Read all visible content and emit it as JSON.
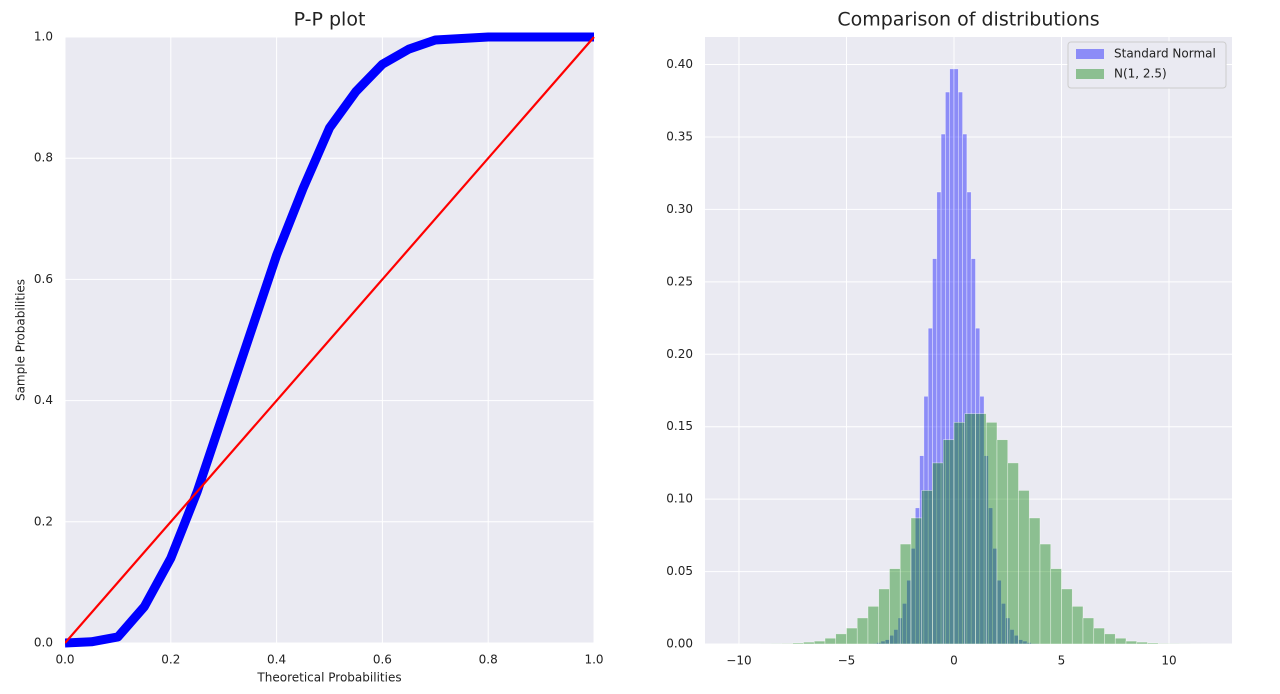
{
  "chart_data": [
    {
      "type": "line",
      "title": "P-P plot",
      "xlabel": "Theoretical Probabilities",
      "ylabel": "Sample Probabilities",
      "xlim": [
        0,
        1
      ],
      "ylim": [
        0,
        1
      ],
      "xticks": [
        {
          "value": 0,
          "label": "0.0"
        },
        0.2,
        0.4,
        0.6,
        0.8,
        {
          "value": 1,
          "label": "1.0"
        }
      ],
      "yticks": [
        {
          "value": 0,
          "label": "0.0"
        },
        0.2,
        0.4,
        0.6,
        0.8,
        {
          "value": 1,
          "label": "1.0"
        }
      ],
      "grid": true,
      "series": [
        {
          "color": "#0000ff",
          "x": [
            0,
            0.05,
            0.1,
            0.15,
            0.2,
            0.25,
            0.3,
            0.35,
            0.4,
            0.45,
            0.5,
            0.55,
            0.6,
            0.65,
            0.7,
            0.8,
            0.9,
            1.0
          ],
          "values": [
            0,
            0.002,
            0.01,
            0.06,
            0.14,
            0.25,
            0.38,
            0.51,
            0.64,
            0.75,
            0.85,
            0.91,
            0.955,
            0.98,
            0.995,
            1.0,
            1.0,
            1.0
          ]
        },
        {
          "color": "#ff0000",
          "x": [
            0,
            1
          ],
          "values": [
            0,
            1
          ]
        }
      ]
    },
    {
      "type": "histogram",
      "title": "Comparison of distributions",
      "xlim": [
        -11.58,
        12.93
      ],
      "ylim": [
        0,
        0.419
      ],
      "xticks": [
        {
          "value": -10,
          "label": "−10"
        },
        {
          "value": -5,
          "label": "−5"
        },
        0,
        5,
        10
      ],
      "yticks": [
        {
          "value": 0,
          "label": "0.00"
        },
        0.05,
        {
          "value": 0.1,
          "label": "0.10"
        },
        0.15,
        {
          "value": 0.2,
          "label": "0.20"
        },
        0.25,
        {
          "value": 0.3,
          "label": "0.30"
        },
        0.35,
        {
          "value": 0.4,
          "label": "0.40"
        }
      ],
      "grid": true,
      "legend": "upper right",
      "series": [
        {
          "name": "Standard Normal",
          "color": "#0000ff",
          "bins": [
            -4,
            -3.8,
            -3.6,
            -3.4,
            -3.2,
            -3,
            -2.8,
            -2.6,
            -2.4,
            -2.2,
            -2,
            -1.8,
            -1.6,
            -1.4,
            -1.2,
            -1,
            -0.8,
            -0.6,
            -0.4,
            -0.2,
            0,
            0.2,
            0.4,
            0.6,
            0.8,
            1,
            1.2,
            1.4,
            1.6,
            1.8,
            2,
            2.2,
            2.4,
            2.6,
            2.8,
            3,
            3.2,
            3.4,
            3.6,
            3.8,
            4
          ],
          "values": [
            0.0002,
            0.0004,
            0.001,
            0.002,
            0.003,
            0.006,
            0.01,
            0.018,
            0.028,
            0.044,
            0.066,
            0.094,
            0.13,
            0.171,
            0.218,
            0.266,
            0.312,
            0.352,
            0.381,
            0.397,
            0.397,
            0.381,
            0.352,
            0.312,
            0.266,
            0.218,
            0.171,
            0.13,
            0.094,
            0.066,
            0.044,
            0.028,
            0.018,
            0.01,
            0.006,
            0.003,
            0.002,
            0.001,
            0.0004,
            0.0002
          ]
        },
        {
          "name": "N(1, 2.5)",
          "color": "#008000",
          "bins": [
            -10,
            -9.5,
            -9,
            -8.5,
            -8,
            -7.5,
            -7,
            -6.5,
            -6,
            -5.5,
            -5,
            -4.5,
            -4,
            -3.5,
            -3,
            -2.5,
            -2,
            -1.5,
            -1,
            -0.5,
            0,
            0.5,
            1,
            1.5,
            2,
            2.5,
            3,
            3.5,
            4,
            4.5,
            5,
            5.5,
            6,
            6.5,
            7,
            7.5,
            8,
            8.5,
            9,
            9.5,
            10,
            10.5,
            11,
            11.5,
            12
          ],
          "values": [
            2e-05,
            4e-05,
            0.0001,
            0.0002,
            0.0003,
            0.0007,
            0.0013,
            0.002,
            0.004,
            0.007,
            0.011,
            0.018,
            0.026,
            0.038,
            0.052,
            0.069,
            0.087,
            0.106,
            0.125,
            0.141,
            0.153,
            0.159,
            0.159,
            0.153,
            0.141,
            0.125,
            0.106,
            0.087,
            0.069,
            0.052,
            0.038,
            0.026,
            0.018,
            0.011,
            0.007,
            0.004,
            0.002,
            0.0013,
            0.0007,
            0.0003,
            0.0002,
            0.0001,
            4e-05,
            2e-05
          ]
        }
      ]
    }
  ]
}
